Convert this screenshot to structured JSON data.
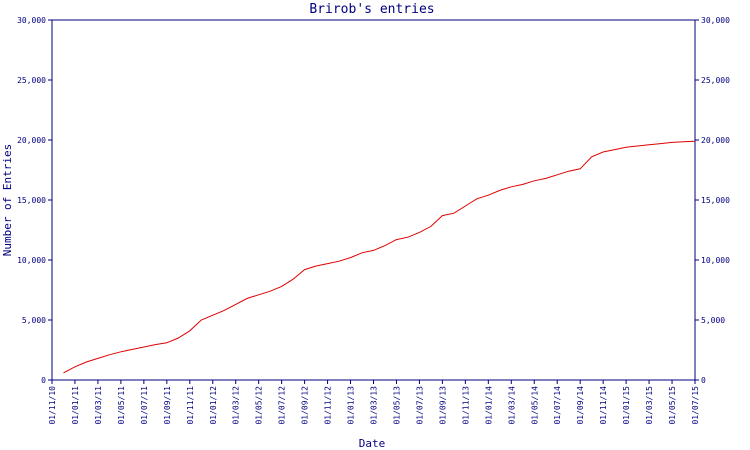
{
  "chart_data": {
    "type": "line",
    "title": "Brirob's entries",
    "xlabel": "Date",
    "ylabel": "Number of Entries",
    "ylim": [
      0,
      30000
    ],
    "grid": false,
    "y_ticks": [
      "0",
      "5,000",
      "10,000",
      "15,000",
      "20,000",
      "25,000",
      "30,000"
    ],
    "y_tick_values": [
      0,
      5000,
      10000,
      15000,
      20000,
      25000,
      30000
    ],
    "x_ticks": [
      "01/11/10",
      "01/01/11",
      "01/03/11",
      "01/05/11",
      "01/07/11",
      "01/09/11",
      "01/11/11",
      "01/01/12",
      "01/03/12",
      "01/05/12",
      "01/07/12",
      "01/09/12",
      "01/11/12",
      "01/01/13",
      "01/03/13",
      "01/05/13",
      "01/07/13",
      "01/09/13",
      "01/11/13",
      "01/01/14",
      "01/03/14",
      "01/05/14",
      "01/07/14",
      "01/09/14",
      "01/11/14",
      "01/01/15",
      "01/03/15",
      "01/05/15",
      "01/07/15"
    ],
    "series": [
      {
        "color": "#e00000",
        "x": [
          "01/12/10",
          "01/01/11",
          "01/02/11",
          "01/03/11",
          "01/04/11",
          "01/05/11",
          "01/06/11",
          "01/07/11",
          "01/08/11",
          "01/09/11",
          "01/10/11",
          "01/11/11",
          "01/12/11",
          "01/01/12",
          "01/02/12",
          "01/03/12",
          "01/04/12",
          "01/05/12",
          "01/06/12",
          "01/07/12",
          "01/08/12",
          "01/09/12",
          "01/10/12",
          "01/11/12",
          "01/12/12",
          "01/01/13",
          "01/02/13",
          "01/03/13",
          "01/04/13",
          "01/05/13",
          "01/06/13",
          "01/07/13",
          "01/08/13",
          "01/09/13",
          "01/10/13",
          "01/11/13",
          "01/12/13",
          "01/01/14",
          "01/02/14",
          "01/03/14",
          "01/04/14",
          "01/05/14",
          "01/06/14",
          "01/07/14",
          "01/08/14",
          "01/09/14",
          "01/10/14",
          "01/11/14",
          "01/12/14",
          "01/01/15",
          "01/02/15",
          "01/03/15",
          "01/04/15",
          "01/05/15",
          "01/06/15",
          "01/07/15"
        ],
        "values": [
          600,
          1100,
          1500,
          1800,
          2100,
          2350,
          2550,
          2750,
          2950,
          3100,
          3500,
          4100,
          5000,
          5400,
          5800,
          6300,
          6800,
          7100,
          7400,
          7800,
          8400,
          9200,
          9500,
          9700,
          9900,
          10200,
          10600,
          10800,
          11200,
          11700,
          11900,
          12300,
          12800,
          13700,
          13900,
          14500,
          15100,
          15400,
          15800,
          16100,
          16300,
          16600,
          16800,
          17100,
          17400,
          17600,
          18600,
          19000,
          19200,
          19400,
          19500,
          19600,
          19700,
          19800,
          19850,
          19900
        ]
      }
    ]
  }
}
